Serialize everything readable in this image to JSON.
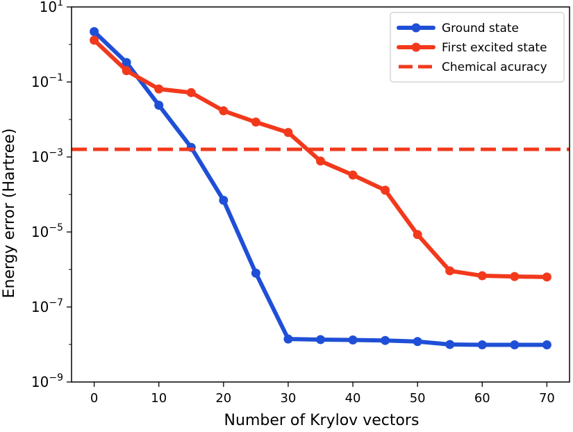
{
  "chart_data": {
    "type": "line",
    "title": "",
    "xlabel": "Number of Krylov vectors",
    "ylabel": "Energy error (Hartree)",
    "xlim": [
      -3.5,
      73.5
    ],
    "ylim": [
      1e-09,
      10
    ],
    "yscale": "log",
    "grid": false,
    "legend_position": "top-right",
    "x_ticks": [
      0,
      10,
      20,
      30,
      40,
      50,
      60,
      70
    ],
    "x_tick_labels": [
      "0",
      "10",
      "20",
      "30",
      "40",
      "50",
      "60",
      "70"
    ],
    "y_ticks": [
      1e-09,
      1e-07,
      1e-05,
      0.001,
      0.1,
      10
    ],
    "y_tick_labels": [
      {
        "base": "10",
        "exp": "−9"
      },
      {
        "base": "10",
        "exp": "−7"
      },
      {
        "base": "10",
        "exp": "−5"
      },
      {
        "base": "10",
        "exp": "−3"
      },
      {
        "base": "10",
        "exp": "−1"
      },
      {
        "base": "10",
        "exp": "1"
      }
    ],
    "series": [
      {
        "name": "Ground state",
        "color": "#1f4fd6",
        "style": "solid",
        "marker": "circle",
        "x": [
          0,
          5,
          10,
          15,
          20,
          25,
          30,
          35,
          40,
          45,
          50,
          55,
          60,
          65,
          70
        ],
        "y": [
          2.2,
          0.33,
          0.024,
          0.0018,
          7e-05,
          8e-07,
          1.4e-08,
          1.35e-08,
          1.32e-08,
          1.28e-08,
          1.2e-08,
          1e-08,
          9.8e-09,
          9.8e-09,
          9.8e-09
        ]
      },
      {
        "name": "First excited state",
        "color": "#f2391c",
        "style": "solid",
        "marker": "circle",
        "x": [
          0,
          5,
          10,
          15,
          20,
          25,
          30,
          35,
          40,
          45,
          50,
          55,
          60,
          65,
          70
        ],
        "y": [
          1.3,
          0.2,
          0.065,
          0.052,
          0.017,
          0.0085,
          0.0045,
          0.00078,
          0.00033,
          0.00013,
          8.5e-06,
          9.2e-07,
          6.8e-07,
          6.5e-07,
          6.3e-07
        ]
      },
      {
        "name": "Chemical acuracy",
        "color": "#f2391c",
        "style": "dashed",
        "type": "hline",
        "y": 0.0016
      }
    ]
  }
}
